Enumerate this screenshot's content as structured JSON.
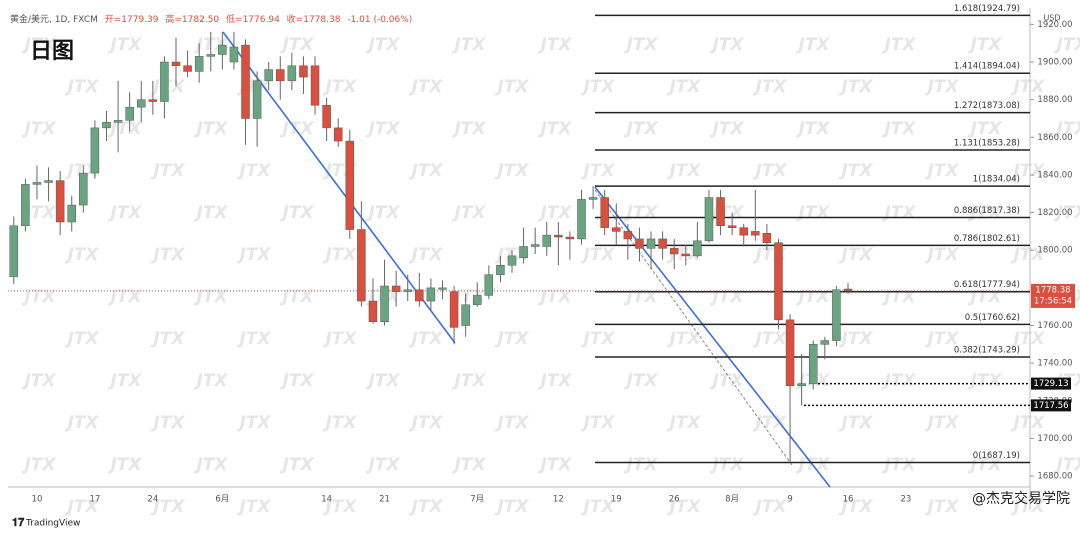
{
  "chart_data": {
    "type": "candlestick",
    "title": "黄金/美元, 1D, FXCM",
    "ohlc_text": [
      "开=1779.39",
      "高=1782.50",
      "低=1776.94",
      "收=1778.38",
      "-1.01 (-0.06%)"
    ],
    "subtitle": "日图",
    "currency": "USD",
    "watermark": "JTX",
    "brand": "TradingView",
    "credit": "@杰克交易学院",
    "up_color": "#6aa582",
    "down_color": "#d9503f",
    "categories": [
      null,
      null,
      "10",
      null,
      null,
      null,
      null,
      "17",
      null,
      null,
      null,
      null,
      "24",
      null,
      null,
      null,
      null,
      null,
      "6月",
      null,
      null,
      null,
      null,
      null,
      null,
      null,
      null,
      "14",
      null,
      null,
      null,
      null,
      "21",
      null,
      null,
      null,
      null,
      null,
      null,
      null,
      "7月",
      null,
      null,
      null,
      null,
      null,
      null,
      "12",
      null,
      null,
      null,
      null,
      "19",
      null,
      null,
      null,
      null,
      "26",
      null,
      null,
      null,
      null,
      "8月",
      null,
      null,
      null,
      null,
      "9",
      null,
      null,
      null,
      null,
      "16",
      null,
      null,
      null,
      null,
      "23"
    ],
    "open": [
      1786,
      1813,
      1835,
      1836,
      1837,
      1815,
      1824,
      1841,
      1865,
      1868,
      1869,
      1876,
      1880,
      1879,
      1900,
      1898,
      1895,
      1903,
      1904,
      1900,
      1909,
      1870,
      1890,
      1896,
      1890,
      1898,
      1898,
      1877,
      1865,
      1858,
      1811,
      1773,
      1762,
      1781,
      1778,
      1779,
      1773,
      1780,
      1778,
      1760,
      1771,
      1776,
      1787,
      1792,
      1796,
      1802,
      1802,
      1808,
      1807,
      1806,
      1827,
      1828,
      1812,
      1810,
      1806,
      1801,
      1806,
      1801,
      1798,
      1797,
      1805,
      1828,
      1813,
      1812,
      1810,
      1809,
      1804,
      1763,
      1728,
      1729,
      1750,
      1752,
      1779.39,
      null,
      null,
      null,
      null,
      null
    ],
    "high": [
      1818,
      1838,
      1845,
      1844,
      1842,
      1829,
      1845,
      1869,
      1874,
      1890,
      1884,
      1890,
      1890,
      1903,
      1913,
      1906,
      1910,
      1916,
      1916,
      1916,
      1912,
      1895,
      1900,
      1903,
      1905,
      1903,
      1903,
      1881,
      1870,
      1864,
      1826,
      1785,
      1795,
      1789,
      1787,
      1788,
      1785,
      1784,
      1781,
      1777,
      1783,
      1792,
      1797,
      1800,
      1812,
      1812,
      1815,
      1815,
      1810,
      1832,
      1834,
      1832,
      1825,
      1814,
      1812,
      1810,
      1810,
      1806,
      1803,
      1815,
      1832,
      1832,
      1820,
      1814,
      1832,
      1814,
      1806,
      1766,
      1745,
      1752,
      1754,
      1781,
      1782.5,
      null,
      null,
      null,
      null,
      null
    ],
    "low": [
      1782,
      1810,
      1827,
      1826,
      1808,
      1810,
      1820,
      1838,
      1858,
      1852,
      1863,
      1868,
      1872,
      1870,
      1887,
      1892,
      1889,
      1895,
      1896,
      1896,
      1856,
      1855,
      1885,
      1880,
      1885,
      1883,
      1872,
      1858,
      1855,
      1806,
      1770,
      1761,
      1760,
      1770,
      1773,
      1770,
      1768,
      1774,
      1750,
      1754,
      1770,
      1774,
      1783,
      1788,
      1793,
      1798,
      1797,
      1792,
      1795,
      1803,
      1822,
      1808,
      1803,
      1795,
      1794,
      1790,
      1795,
      1790,
      1792,
      1796,
      1804,
      1808,
      1808,
      1802,
      1805,
      1800,
      1758,
      1687.19,
      1717.56,
      1726,
      1742,
      1749,
      1776.94,
      null,
      null,
      null,
      null,
      null
    ],
    "close": [
      1813,
      1835,
      1836,
      1837,
      1815,
      1824,
      1841,
      1865,
      1868,
      1869,
      1876,
      1880,
      1879,
      1900,
      1898,
      1895,
      1903,
      1904,
      1909,
      1908,
      1870,
      1890,
      1896,
      1890,
      1898,
      1892,
      1877,
      1865,
      1858,
      1811,
      1773,
      1762,
      1781,
      1778,
      1779,
      1773,
      1780,
      1780,
      1759,
      1771,
      1776,
      1787,
      1792,
      1797,
      1802,
      1803,
      1808,
      1807,
      1806,
      1827,
      1828,
      1812,
      1810,
      1806,
      1801,
      1806,
      1801,
      1798,
      1797,
      1805,
      1828,
      1813,
      1812,
      1808,
      1808,
      1804,
      1763,
      1728,
      1729.13,
      1750,
      1752,
      1779,
      1778.38,
      null,
      null,
      null,
      null,
      null
    ],
    "ylim": [
      1674.2,
      1928.7
    ],
    "yticks": [
      {
        "value": 1680,
        "label": "1680.00"
      },
      {
        "value": 1700,
        "label": "1700.00"
      },
      {
        "value": 1720,
        "label": "1720.00"
      },
      {
        "value": 1740,
        "label": "1740.00"
      },
      {
        "value": 1760,
        "label": "1760.00"
      },
      {
        "value": 1780,
        "label": "1780.00"
      },
      {
        "value": 1800,
        "label": "1800.00"
      },
      {
        "value": 1820,
        "label": "1820.00"
      },
      {
        "value": 1840,
        "label": "1840.00"
      },
      {
        "value": 1860,
        "label": "1860.00"
      },
      {
        "value": 1880,
        "label": "1880.00"
      },
      {
        "value": 1900,
        "label": "1900.00"
      },
      {
        "value": 1920,
        "label": "1920.00"
      }
    ],
    "fib_levels": [
      {
        "value": 1924.79,
        "label": "1.618(1924.79)"
      },
      {
        "value": 1894.04,
        "label": "1.414(1894.04)"
      },
      {
        "value": 1873.08,
        "label": "1.272(1873.08)"
      },
      {
        "value": 1853.28,
        "label": "1.131(1853.28)"
      },
      {
        "value": 1834.04,
        "label": "1(1834.04)"
      },
      {
        "value": 1817.38,
        "label": "0.886(1817.38)"
      },
      {
        "value": 1802.61,
        "label": "0.786(1802.61)"
      },
      {
        "value": 1777.94,
        "label": "0.618(1777.94)"
      },
      {
        "value": 1760.62,
        "label": "0.5(1760.62)"
      },
      {
        "value": 1743.29,
        "label": "0.382(1743.29)"
      },
      {
        "value": 1687.19,
        "label": "0(1687.19)"
      }
    ],
    "price_lines": [
      1729.13,
      1717.56
    ],
    "last_price": {
      "value": 1778.38,
      "countdown": "17:56:54"
    },
    "grid": false
  }
}
